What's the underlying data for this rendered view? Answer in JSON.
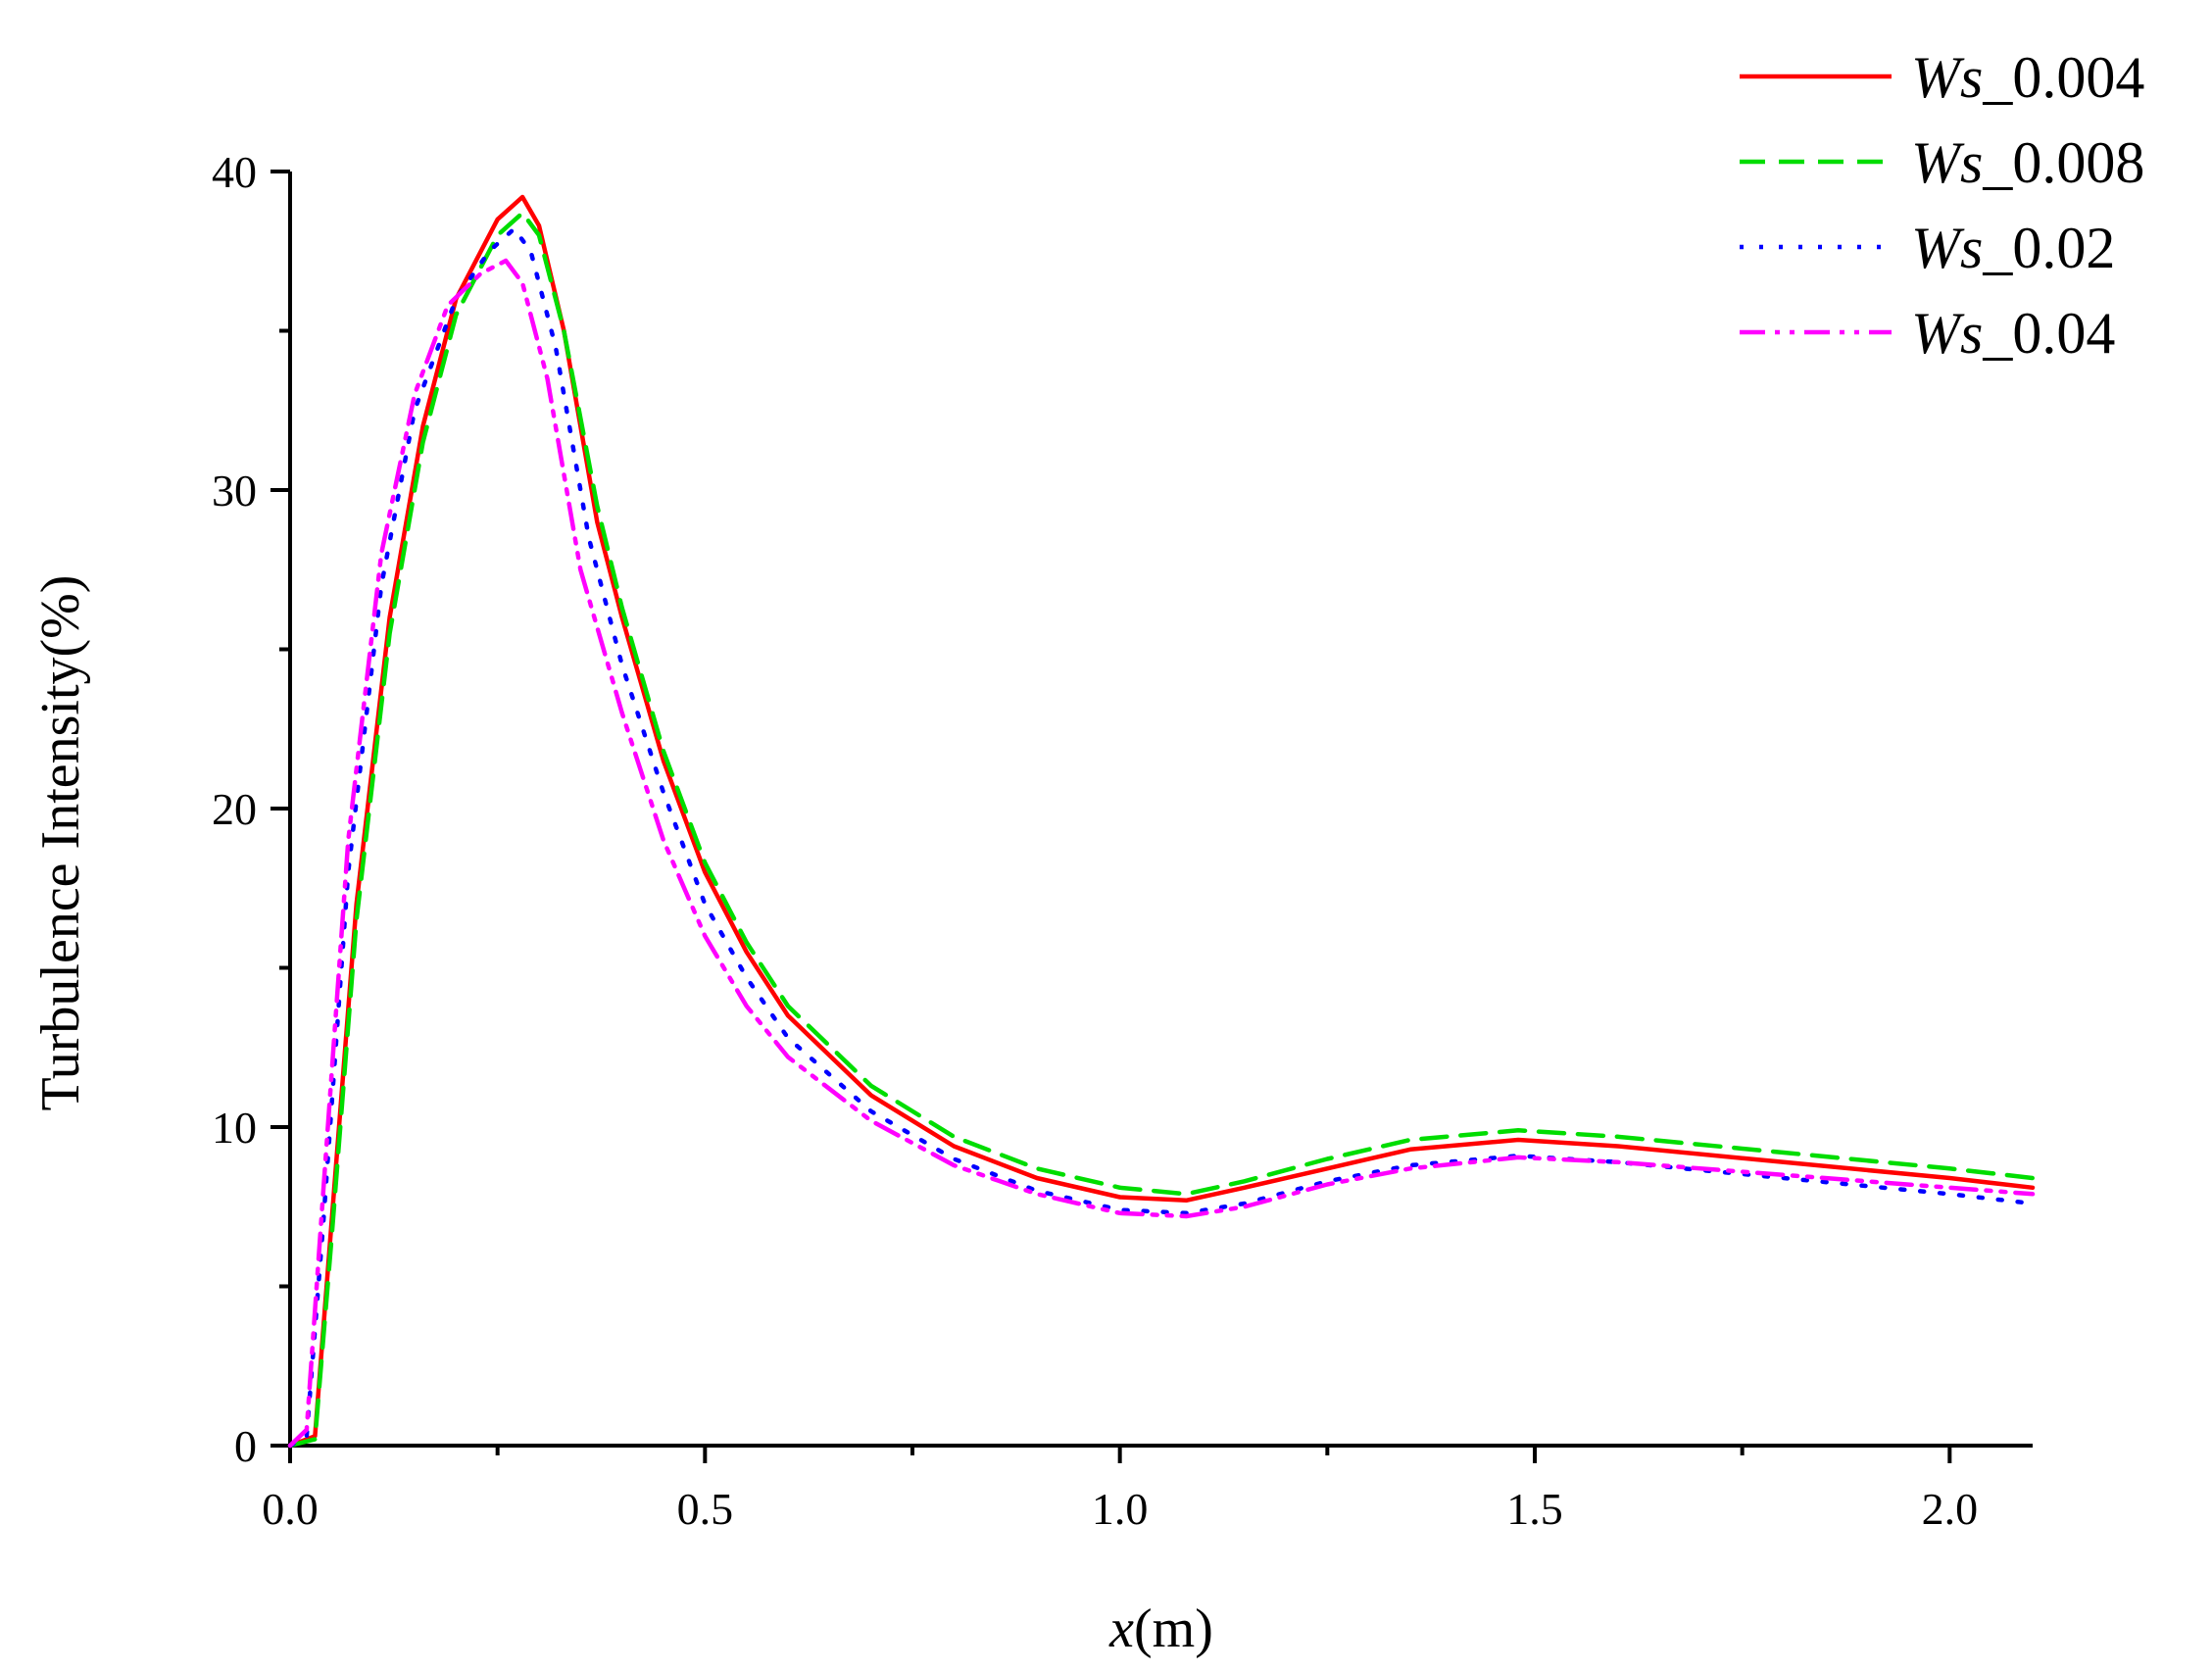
{
  "chart_data": {
    "type": "line",
    "xlabel_italic": "x",
    "xlabel_rest": "(m)",
    "ylabel": "Turbulence Intensity(%)",
    "xlim": [
      0,
      2.1
    ],
    "ylim": [
      0,
      40
    ],
    "x_ticks": [
      0.0,
      0.5,
      1.0,
      1.5,
      2.0
    ],
    "x_tick_labels": [
      "0.0",
      "0.5",
      "1.0",
      "1.5",
      "2.0"
    ],
    "x_minor_ticks": [
      0.25,
      0.75,
      1.25,
      1.75
    ],
    "y_ticks": [
      0,
      10,
      20,
      30,
      40
    ],
    "y_tick_labels": [
      "0",
      "10",
      "20",
      "30",
      "40"
    ],
    "y_minor_ticks": [
      5,
      15,
      25,
      35
    ],
    "legend_position": "top-right",
    "series": [
      {
        "name_italic": "Ws",
        "name_rest": "_0.004",
        "color": "#ff0000",
        "dash": "solid",
        "points": [
          [
            0,
            0
          ],
          [
            0.03,
            0.3
          ],
          [
            0.05,
            7
          ],
          [
            0.08,
            17
          ],
          [
            0.12,
            26
          ],
          [
            0.16,
            32
          ],
          [
            0.2,
            36
          ],
          [
            0.25,
            38.5
          ],
          [
            0.28,
            39.2
          ],
          [
            0.3,
            38.3
          ],
          [
            0.33,
            35
          ],
          [
            0.37,
            29
          ],
          [
            0.4,
            26
          ],
          [
            0.45,
            21.5
          ],
          [
            0.5,
            18
          ],
          [
            0.55,
            15.5
          ],
          [
            0.6,
            13.5
          ],
          [
            0.7,
            11
          ],
          [
            0.8,
            9.4
          ],
          [
            0.9,
            8.4
          ],
          [
            1.0,
            7.8
          ],
          [
            1.08,
            7.7
          ],
          [
            1.15,
            8.1
          ],
          [
            1.25,
            8.7
          ],
          [
            1.35,
            9.3
          ],
          [
            1.48,
            9.6
          ],
          [
            1.6,
            9.4
          ],
          [
            1.8,
            8.9
          ],
          [
            2.0,
            8.4
          ],
          [
            2.1,
            8.1
          ]
        ]
      },
      {
        "name_italic": "Ws",
        "name_rest": "_0.008",
        "color": "#00dd00",
        "dash": "dashed",
        "points": [
          [
            0,
            0
          ],
          [
            0.03,
            0.2
          ],
          [
            0.05,
            6.5
          ],
          [
            0.08,
            16.5
          ],
          [
            0.12,
            25.5
          ],
          [
            0.16,
            31.5
          ],
          [
            0.2,
            35.5
          ],
          [
            0.25,
            38
          ],
          [
            0.28,
            38.7
          ],
          [
            0.3,
            38
          ],
          [
            0.33,
            35
          ],
          [
            0.37,
            29.5
          ],
          [
            0.4,
            26.3
          ],
          [
            0.45,
            21.8
          ],
          [
            0.5,
            18.3
          ],
          [
            0.55,
            15.8
          ],
          [
            0.6,
            13.8
          ],
          [
            0.7,
            11.3
          ],
          [
            0.8,
            9.7
          ],
          [
            0.9,
            8.7
          ],
          [
            1.0,
            8.1
          ],
          [
            1.08,
            7.9
          ],
          [
            1.15,
            8.3
          ],
          [
            1.25,
            9
          ],
          [
            1.35,
            9.6
          ],
          [
            1.48,
            9.9
          ],
          [
            1.6,
            9.7
          ],
          [
            1.8,
            9.2
          ],
          [
            2.0,
            8.7
          ],
          [
            2.1,
            8.4
          ]
        ]
      },
      {
        "name_italic": "Ws",
        "name_rest": "_0.02",
        "color": "#0000ff",
        "dash": "dotted",
        "points": [
          [
            0,
            0
          ],
          [
            0.02,
            0.3
          ],
          [
            0.04,
            7
          ],
          [
            0.07,
            18
          ],
          [
            0.11,
            27
          ],
          [
            0.15,
            32.5
          ],
          [
            0.2,
            36
          ],
          [
            0.24,
            37.5
          ],
          [
            0.27,
            38.2
          ],
          [
            0.29,
            37.5
          ],
          [
            0.32,
            34.5
          ],
          [
            0.36,
            28.5
          ],
          [
            0.4,
            24.5
          ],
          [
            0.45,
            20.5
          ],
          [
            0.5,
            17
          ],
          [
            0.55,
            14.7
          ],
          [
            0.6,
            12.8
          ],
          [
            0.7,
            10.5
          ],
          [
            0.8,
            9
          ],
          [
            0.9,
            8
          ],
          [
            1.0,
            7.4
          ],
          [
            1.08,
            7.3
          ],
          [
            1.15,
            7.6
          ],
          [
            1.25,
            8.3
          ],
          [
            1.35,
            8.8
          ],
          [
            1.48,
            9.1
          ],
          [
            1.6,
            8.9
          ],
          [
            1.8,
            8.4
          ],
          [
            2.0,
            7.9
          ],
          [
            2.1,
            7.6
          ]
        ]
      },
      {
        "name_italic": "Ws",
        "name_rest": "_0.04",
        "color": "#ff00ff",
        "dash": "dashdotdot",
        "points": [
          [
            0,
            0
          ],
          [
            0.02,
            0.5
          ],
          [
            0.04,
            8
          ],
          [
            0.07,
            19
          ],
          [
            0.11,
            28
          ],
          [
            0.15,
            33
          ],
          [
            0.19,
            35.8
          ],
          [
            0.23,
            36.8
          ],
          [
            0.26,
            37.2
          ],
          [
            0.28,
            36.5
          ],
          [
            0.31,
            33.5
          ],
          [
            0.35,
            27.5
          ],
          [
            0.4,
            23
          ],
          [
            0.45,
            19
          ],
          [
            0.5,
            16
          ],
          [
            0.55,
            13.8
          ],
          [
            0.6,
            12.2
          ],
          [
            0.7,
            10.2
          ],
          [
            0.8,
            8.8
          ],
          [
            0.9,
            7.9
          ],
          [
            1.0,
            7.3
          ],
          [
            1.08,
            7.2
          ],
          [
            1.15,
            7.5
          ],
          [
            1.25,
            8.2
          ],
          [
            1.35,
            8.7
          ],
          [
            1.48,
            9.05
          ],
          [
            1.6,
            8.9
          ],
          [
            1.8,
            8.5
          ],
          [
            2.0,
            8.1
          ],
          [
            2.1,
            7.9
          ]
        ]
      }
    ]
  }
}
